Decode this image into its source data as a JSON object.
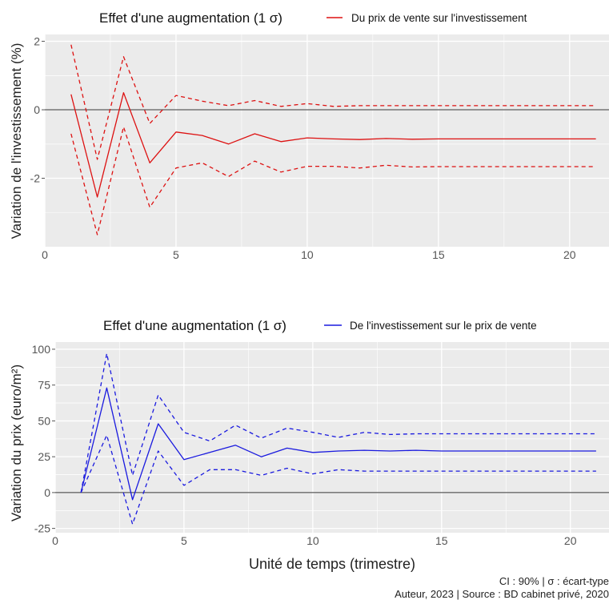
{
  "chart_data": [
    {
      "type": "line",
      "title": "Effet d'une augmentation (1 σ)",
      "legend": {
        "position": "top",
        "label": "Du prix de vente sur l'investissement"
      },
      "ylabel": "Variation de l'investissement (%)",
      "xlabel": "",
      "xlim": [
        0,
        21.5
      ],
      "ylim": [
        -4.0,
        2.2
      ],
      "xticks": [
        0,
        5,
        10,
        15,
        20
      ],
      "yticks": [
        -2,
        0,
        2
      ],
      "grid": true,
      "colors": {
        "line": "#dd1111",
        "panel": "#ebebeb",
        "grid": "#ffffff",
        "zero": "#333333"
      },
      "x": [
        1,
        2,
        3,
        4,
        5,
        6,
        7,
        8,
        9,
        10,
        11,
        12,
        13,
        14,
        15,
        16,
        17,
        18,
        19,
        20,
        21
      ],
      "series": [
        {
          "role": "estimate",
          "style": "solid",
          "values": [
            0.45,
            -2.55,
            0.5,
            -1.55,
            -0.65,
            -0.75,
            -1.0,
            -0.7,
            -0.93,
            -0.82,
            -0.85,
            -0.87,
            -0.84,
            -0.86,
            -0.85,
            -0.85,
            -0.85,
            -0.85,
            -0.85,
            -0.85,
            -0.85
          ]
        },
        {
          "role": "upper",
          "style": "dashed",
          "values": [
            1.9,
            -1.45,
            1.55,
            -0.4,
            0.42,
            0.25,
            0.12,
            0.27,
            0.1,
            0.18,
            0.1,
            0.12,
            0.12,
            0.12,
            0.12,
            0.12,
            0.12,
            0.12,
            0.12,
            0.12,
            0.12
          ]
        },
        {
          "role": "lower",
          "style": "dashed",
          "values": [
            -0.7,
            -3.65,
            -0.5,
            -2.85,
            -1.7,
            -1.55,
            -1.95,
            -1.5,
            -1.82,
            -1.65,
            -1.65,
            -1.7,
            -1.62,
            -1.67,
            -1.66,
            -1.66,
            -1.66,
            -1.66,
            -1.66,
            -1.66,
            -1.66
          ]
        }
      ]
    },
    {
      "type": "line",
      "title": "Effet d'une augmentation (1 σ)",
      "legend": {
        "position": "top",
        "label": "De l'investissement sur le prix de vente"
      },
      "ylabel": "Variation du prix (euro/m²)",
      "xlabel": "Unité de temps (trimestre)",
      "xlim": [
        0,
        21.5
      ],
      "ylim": [
        -28,
        105
      ],
      "xticks": [
        0,
        5,
        10,
        15,
        20
      ],
      "yticks": [
        -25,
        0,
        25,
        50,
        75,
        100
      ],
      "grid": true,
      "colors": {
        "line": "#1a1adf",
        "panel": "#ebebeb",
        "grid": "#ffffff",
        "zero": "#333333"
      },
      "x": [
        1,
        2,
        3,
        4,
        5,
        6,
        7,
        8,
        9,
        10,
        11,
        12,
        13,
        14,
        15,
        16,
        17,
        18,
        19,
        20,
        21
      ],
      "series": [
        {
          "role": "estimate",
          "style": "solid",
          "values": [
            0,
            73,
            -5,
            48,
            23,
            28,
            33,
            25,
            31,
            28,
            29,
            29.5,
            29,
            29.5,
            29,
            29,
            29,
            29,
            29,
            29,
            29
          ]
        },
        {
          "role": "upper",
          "style": "dashed",
          "values": [
            0,
            97,
            12,
            68,
            42,
            36,
            47,
            38,
            45,
            42,
            38.5,
            42,
            40.5,
            41,
            41,
            41,
            41,
            41,
            41,
            41,
            41
          ]
        },
        {
          "role": "lower",
          "style": "dashed",
          "values": [
            0,
            40,
            -22,
            29,
            5,
            16,
            16,
            12,
            17,
            13,
            16,
            15,
            15,
            15,
            15,
            15,
            15,
            15,
            15,
            15,
            15
          ]
        }
      ]
    }
  ],
  "caption": {
    "line1": "CI : 90% | σ : écart-type",
    "line2": "Auteur, 2023 | Source : BD cabinet privé, 2020"
  }
}
